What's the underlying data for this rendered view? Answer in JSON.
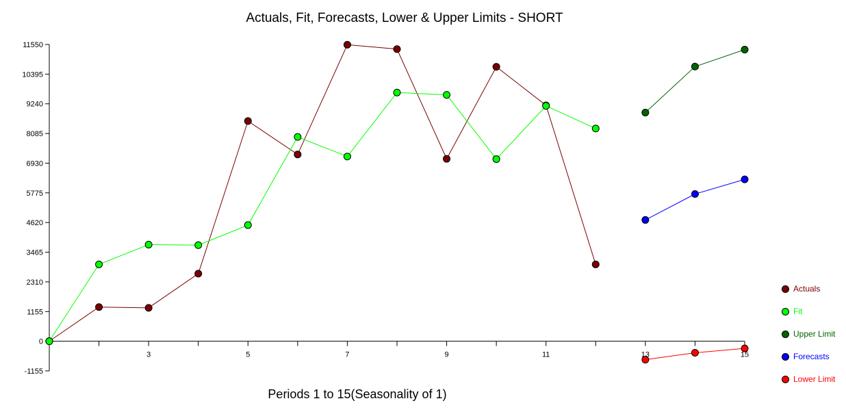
{
  "chart_data": {
    "type": "line",
    "title": "Actuals, Fit, Forecasts, Lower & Upper Limits - SHORT",
    "xlabel": "Periods 1 to 15(Seasonality of 1)",
    "ylabel": "",
    "xlim": [
      1,
      15
    ],
    "ylim": [
      -1155,
      11550
    ],
    "x_ticks": [
      1,
      2,
      3,
      4,
      5,
      6,
      7,
      8,
      9,
      10,
      11,
      12,
      13,
      14,
      15
    ],
    "x_tick_labels": [
      "3",
      "5",
      "7",
      "9",
      "11",
      "13",
      "15"
    ],
    "x_tick_label_values": [
      3,
      5,
      7,
      9,
      11,
      13,
      15
    ],
    "y_ticks": [
      11550,
      10395,
      9240,
      8085,
      6930,
      5775,
      4620,
      3465,
      2310,
      1155,
      0,
      -1155
    ],
    "grid": false,
    "legend_position": "right",
    "series": [
      {
        "name": "Actuals",
        "color": "#7a0000",
        "x": [
          1,
          2,
          3,
          4,
          5,
          6,
          7,
          8,
          9,
          10,
          11,
          12
        ],
        "values": [
          0,
          1330,
          1300,
          2630,
          8570,
          7270,
          11540,
          11370,
          7100,
          10680,
          9180,
          2990
        ]
      },
      {
        "name": "Fit",
        "color": "#00ff00",
        "x": [
          1,
          2,
          3,
          4,
          5,
          6,
          7,
          8,
          9,
          10,
          11,
          12
        ],
        "values": [
          0,
          2990,
          3760,
          3740,
          4520,
          7950,
          7190,
          9680,
          9590,
          7090,
          9160,
          8280
        ]
      },
      {
        "name": "Upper Limit",
        "color": "#006400",
        "x": [
          13,
          14,
          15
        ],
        "values": [
          8900,
          10690,
          11350
        ]
      },
      {
        "name": "Forecasts",
        "color": "#0000ff",
        "x": [
          13,
          14,
          15
        ],
        "values": [
          4720,
          5730,
          6300
        ]
      },
      {
        "name": "Lower Limit",
        "color": "#ff0000",
        "x": [
          13,
          14,
          15
        ],
        "values": [
          -720,
          -450,
          -280
        ]
      }
    ]
  }
}
